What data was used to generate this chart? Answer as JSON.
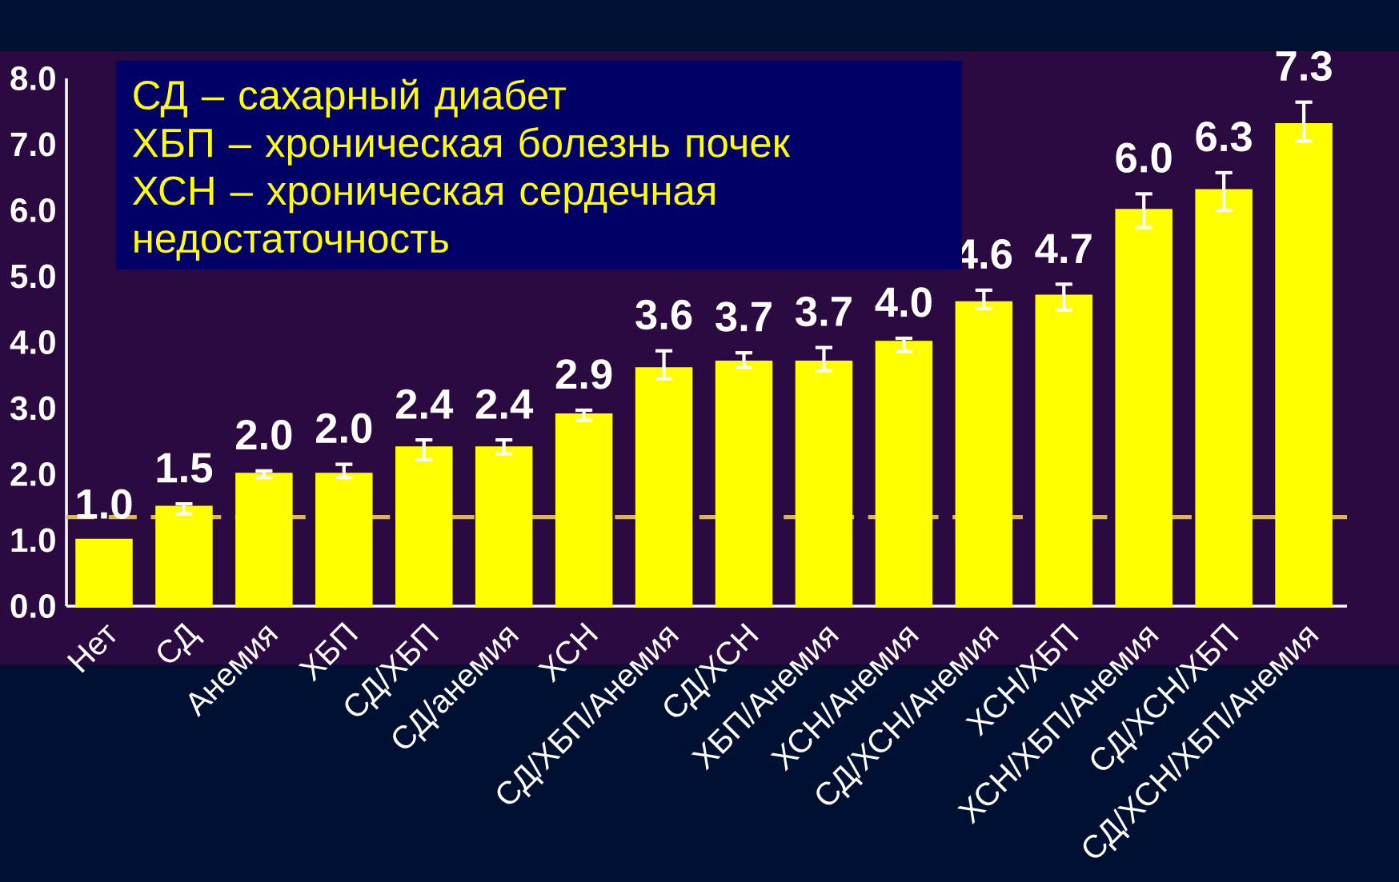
{
  "chart_data": {
    "type": "bar",
    "categories": [
      "Нет",
      "СД",
      "Анемия",
      "ХБП",
      "СД/ХБП",
      "СД/анемия",
      "ХСН",
      "СД/ХБП/Анемия",
      "СД/ХСН",
      "ХБП/Анемия",
      "ХСН/Анемия",
      "СД/ХСН/Анемия",
      "ХСН/ХБП",
      "ХСН/ХБП/Анемия",
      "СД/ХСН/ХБП",
      "СД/ХСН/ХБП/Анемия"
    ],
    "values": [
      1.0,
      1.5,
      2.0,
      2.0,
      2.4,
      2.4,
      2.9,
      3.6,
      3.7,
      3.7,
      4.0,
      4.6,
      4.7,
      6.0,
      6.3,
      7.3
    ],
    "value_labels": [
      "1.0",
      "1.5",
      "2.0",
      "2.0",
      "2.4",
      "2.4",
      "2.9",
      "3.6",
      "3.7",
      "3.7",
      "4.0",
      "4.6",
      "4.7",
      "6.0",
      "6.3",
      "7.3"
    ],
    "errors": [
      null,
      [
        1.4,
        1.55
      ],
      [
        1.95,
        2.05
      ],
      [
        1.95,
        2.15
      ],
      [
        2.22,
        2.52
      ],
      [
        2.31,
        2.52
      ],
      [
        2.82,
        2.97
      ],
      [
        3.45,
        3.87
      ],
      [
        3.62,
        3.84
      ],
      [
        3.57,
        3.92
      ],
      [
        3.86,
        4.06
      ],
      [
        4.51,
        4.79
      ],
      [
        4.49,
        4.88
      ],
      [
        5.74,
        6.25
      ],
      [
        6.0,
        6.57
      ],
      [
        7.05,
        7.64
      ]
    ],
    "color": "#ffff00",
    "ylim": [
      0,
      8
    ],
    "yticks": [
      {
        "value": 0,
        "label": "0.0"
      },
      {
        "value": 1,
        "label": "1.0"
      },
      {
        "value": 2,
        "label": "2.0"
      },
      {
        "value": 3,
        "label": "3.0"
      },
      {
        "value": 4,
        "label": "4.0"
      },
      {
        "value": 5,
        "label": "5.0"
      },
      {
        "value": 6,
        "label": "6.0"
      },
      {
        "value": 7,
        "label": "7.0"
      },
      {
        "value": 8,
        "label": "8.0"
      }
    ],
    "ref_lines": [
      {
        "axis": "y",
        "value": 1.35,
        "color": "#d9b36b",
        "line_style": "dashed"
      }
    ],
    "annotations": [
      "СД – сахарный диабет",
      "ХБП – хроническая болезнь почек",
      "ХСН – хроническая сердечная недостаточность"
    ]
  }
}
